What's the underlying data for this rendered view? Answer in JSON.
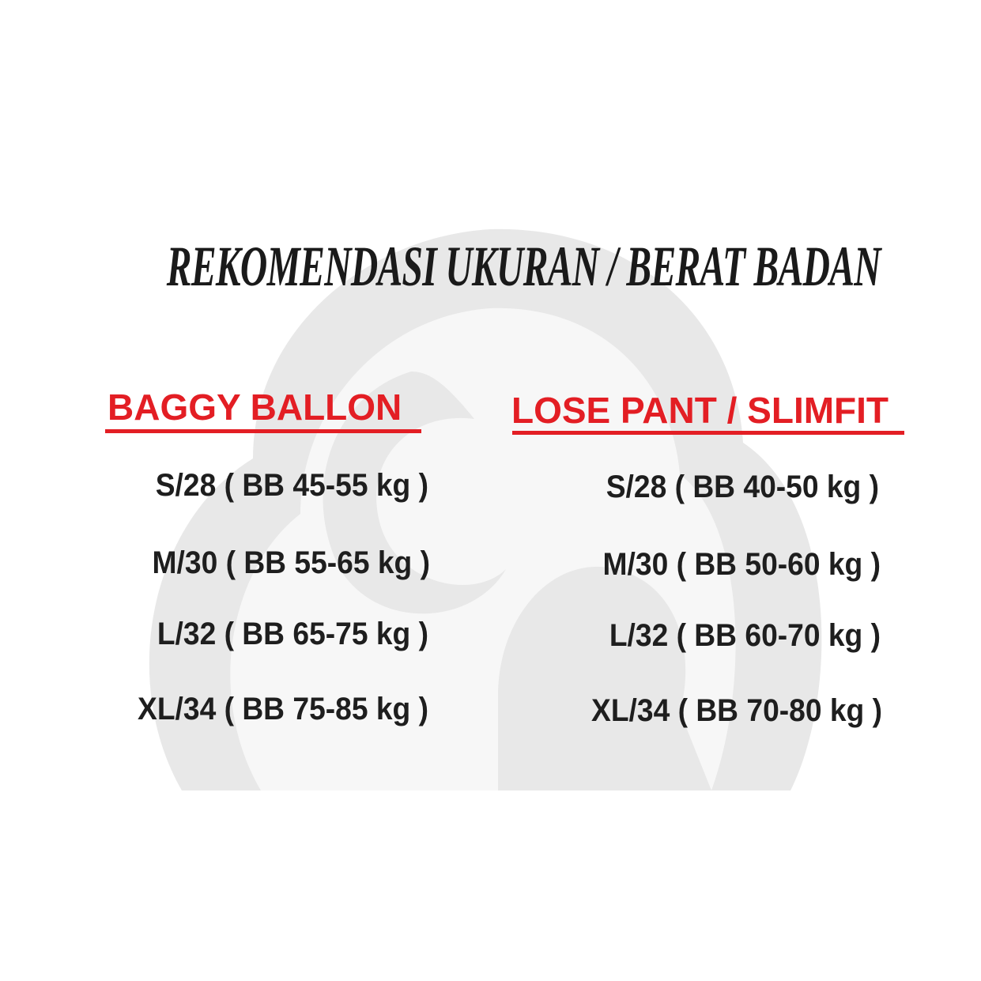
{
  "title": "REKOMENDASI UKURAN / BERAT BADAN",
  "colors": {
    "heading": "#e31e24",
    "text": "#1e1e1e",
    "watermark": "#e6e6e6"
  },
  "watermark_icon": "cloud-s-logo",
  "columns": [
    {
      "heading": "BAGGY BALLON",
      "rows": [
        "S/28 ( BB 45-55 kg )",
        "M/30 ( BB 55-65 kg )",
        "L/32 ( BB 65-75 kg )",
        "XL/34 ( BB 75-85 kg )"
      ]
    },
    {
      "heading": "LOSE PANT / SLIMFIT",
      "rows": [
        "S/28 ( BB 40-50 kg )",
        "M/30 ( BB 50-60 kg )",
        "L/32 ( BB 60-70 kg )",
        "XL/34 ( BB 70-80 kg )"
      ]
    }
  ]
}
